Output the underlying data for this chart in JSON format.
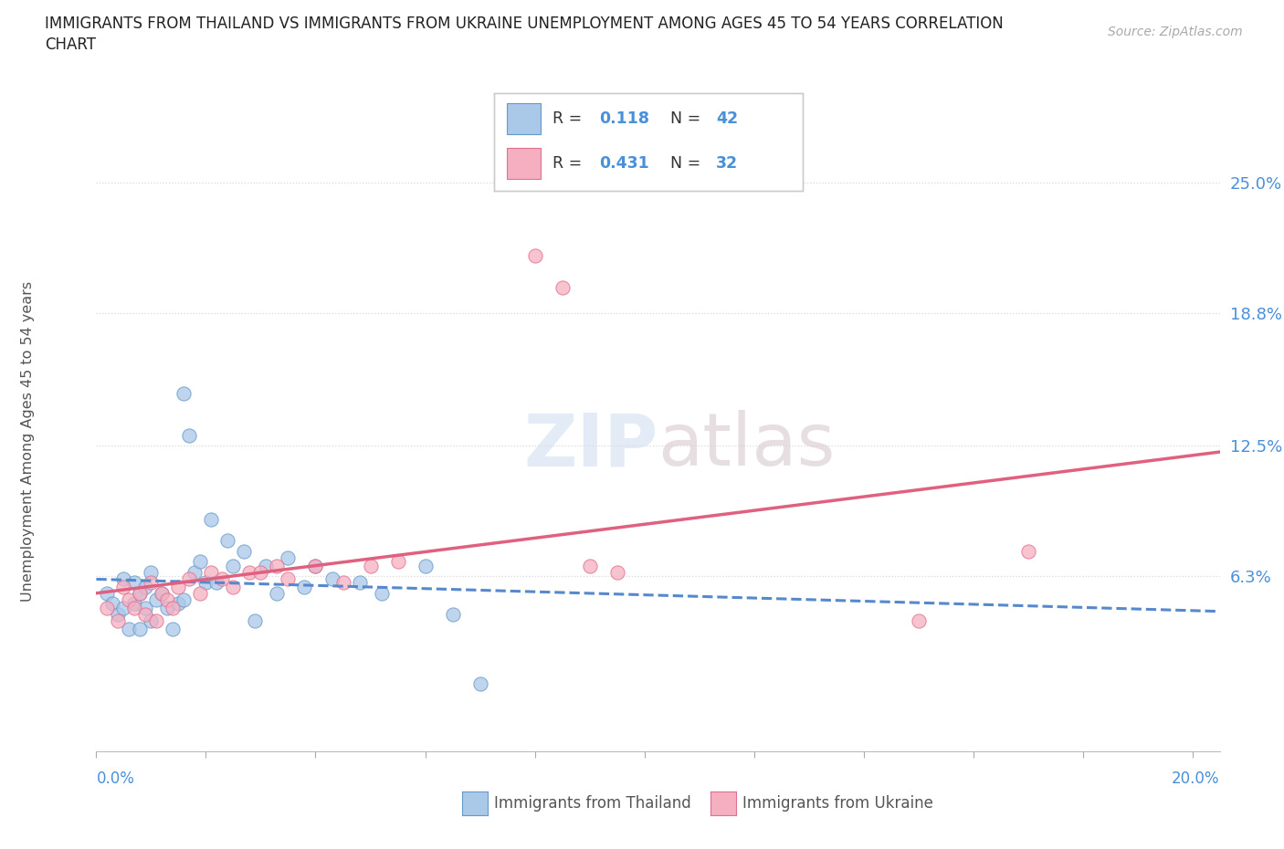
{
  "title_line1": "IMMIGRANTS FROM THAILAND VS IMMIGRANTS FROM UKRAINE UNEMPLOYMENT AMONG AGES 45 TO 54 YEARS CORRELATION",
  "title_line2": "CHART",
  "source": "Source: ZipAtlas.com",
  "ylabel": "Unemployment Among Ages 45 to 54 years",
  "xlim": [
    0.0,
    0.205
  ],
  "ylim": [
    -0.02,
    0.27
  ],
  "ytick_labels": [
    "6.3%",
    "12.5%",
    "18.8%",
    "25.0%"
  ],
  "ytick_positions": [
    0.063,
    0.125,
    0.188,
    0.25
  ],
  "thailand_R": "0.118",
  "thailand_N": "42",
  "ukraine_R": "0.431",
  "ukraine_N": "32",
  "thailand_color": "#aac8e8",
  "ukraine_color": "#f5afc0",
  "thailand_edge_color": "#6699cc",
  "ukraine_edge_color": "#e07090",
  "thailand_line_color": "#5588cc",
  "ukraine_line_color": "#e06080",
  "bg_color": "#ffffff",
  "grid_color": "#d8d8d8",
  "thailand_x": [
    0.002,
    0.003,
    0.004,
    0.005,
    0.005,
    0.006,
    0.007,
    0.007,
    0.008,
    0.008,
    0.009,
    0.009,
    0.01,
    0.01,
    0.011,
    0.012,
    0.013,
    0.014,
    0.015,
    0.016,
    0.016,
    0.017,
    0.018,
    0.019,
    0.02,
    0.021,
    0.022,
    0.024,
    0.025,
    0.027,
    0.029,
    0.031,
    0.033,
    0.035,
    0.038,
    0.04,
    0.043,
    0.048,
    0.052,
    0.06,
    0.065,
    0.07
  ],
  "thailand_y": [
    0.055,
    0.05,
    0.045,
    0.048,
    0.062,
    0.038,
    0.05,
    0.06,
    0.038,
    0.055,
    0.048,
    0.058,
    0.042,
    0.065,
    0.052,
    0.055,
    0.048,
    0.038,
    0.05,
    0.052,
    0.15,
    0.13,
    0.065,
    0.07,
    0.06,
    0.09,
    0.06,
    0.08,
    0.068,
    0.075,
    0.042,
    0.068,
    0.055,
    0.072,
    0.058,
    0.068,
    0.062,
    0.06,
    0.055,
    0.068,
    0.045,
    0.012
  ],
  "ukraine_x": [
    0.002,
    0.004,
    0.005,
    0.006,
    0.007,
    0.008,
    0.009,
    0.01,
    0.011,
    0.012,
    0.013,
    0.014,
    0.015,
    0.017,
    0.019,
    0.021,
    0.023,
    0.025,
    0.028,
    0.03,
    0.033,
    0.035,
    0.04,
    0.045,
    0.05,
    0.055,
    0.08,
    0.085,
    0.09,
    0.095,
    0.15,
    0.17
  ],
  "ukraine_y": [
    0.048,
    0.042,
    0.058,
    0.052,
    0.048,
    0.055,
    0.045,
    0.06,
    0.042,
    0.055,
    0.052,
    0.048,
    0.058,
    0.062,
    0.055,
    0.065,
    0.062,
    0.058,
    0.065,
    0.065,
    0.068,
    0.062,
    0.068,
    0.06,
    0.068,
    0.07,
    0.215,
    0.2,
    0.068,
    0.065,
    0.042,
    0.075
  ]
}
